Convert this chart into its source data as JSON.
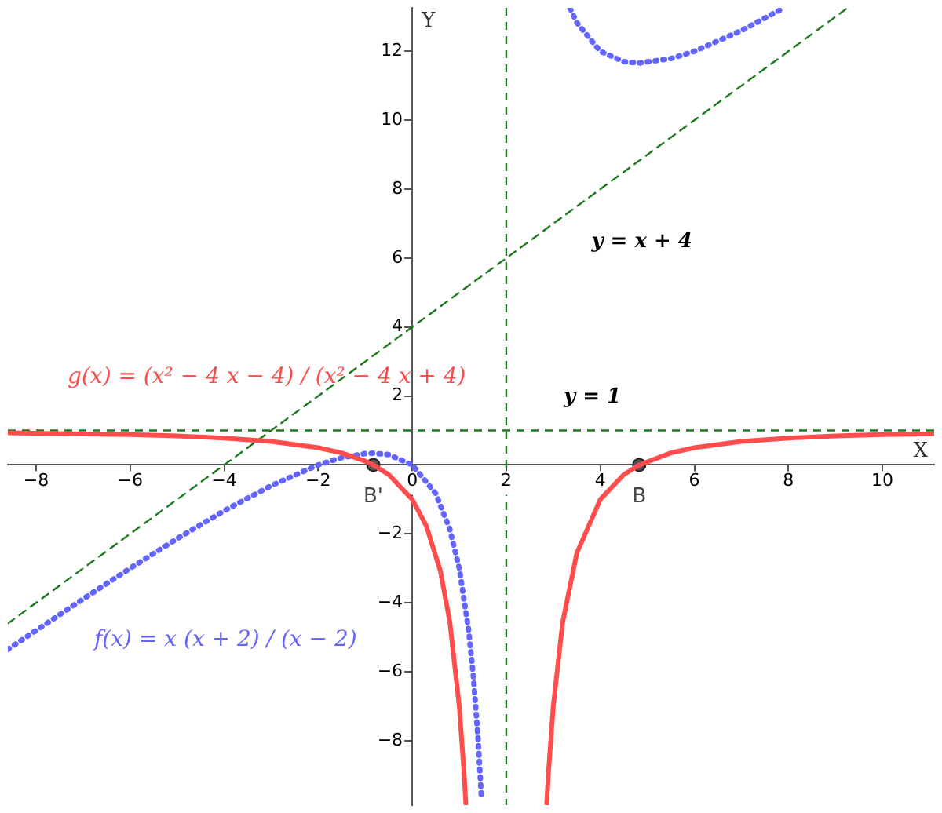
{
  "chart_data": {
    "type": "line",
    "xlabel": "X",
    "ylabel": "Y",
    "xlim": [
      -8.6,
      11.1
    ],
    "ylim": [
      -9.87,
      13.26
    ],
    "xticks": [
      -8,
      -6,
      -4,
      -2,
      0,
      2,
      4,
      6,
      8,
      10
    ],
    "yticks": [
      -8,
      -6,
      -4,
      -2,
      2,
      4,
      6,
      8,
      10,
      12
    ],
    "grid": false,
    "legend": false,
    "series": [
      {
        "name": "g(x) = (x² − 4 x − 4) / (x² − 4 x + 4)",
        "color": "#ff4d4d",
        "line_style": "solid",
        "x": [
          -8.6,
          -7,
          -6,
          -5,
          -4,
          -3,
          -2,
          -1.5,
          -1,
          -0.828,
          -0.5,
          0,
          0.3,
          0.6,
          0.8,
          1,
          1.1,
          1.14,
          null,
          2.86,
          2.9,
          3,
          3.2,
          3.5,
          4,
          4.5,
          4.828,
          5.5,
          6,
          7,
          8,
          9,
          10,
          11.1
        ],
        "values": [
          0.93,
          0.9,
          0.88,
          0.84,
          0.78,
          0.68,
          0.5,
          0.35,
          0.11,
          0,
          -0.28,
          -1,
          -1.77,
          -3.08,
          -4.56,
          -7,
          -8.88,
          -9.82,
          null,
          -9.82,
          -8.88,
          -7,
          -4.56,
          -2.56,
          -1,
          -0.28,
          0,
          0.35,
          0.5,
          0.68,
          0.78,
          0.84,
          0.88,
          0.9
        ]
      },
      {
        "name": "f(x) = x (x + 2) / (x − 2)",
        "color": "#6464ff",
        "line_style": "dotted",
        "x": [
          -8.6,
          -7,
          -6,
          -5,
          -4,
          -3,
          -2,
          -1.5,
          -1,
          -0.828,
          -0.5,
          0,
          0.5,
          0.8,
          1,
          1.2,
          1.3,
          1.4,
          1.47,
          null,
          3.36,
          3.5,
          4,
          4.5,
          4.83,
          5.5,
          6,
          7,
          7.88
        ],
        "values": [
          -5.35,
          -3.89,
          -3,
          -2.14,
          -1.33,
          -0.6,
          0,
          0.21,
          0.33,
          0.34,
          0.3,
          0,
          -0.83,
          -1.87,
          -3,
          -4.8,
          -6.13,
          -7.93,
          -9.62,
          null,
          13.24,
          12.83,
          12,
          11.7,
          11.66,
          11.79,
          12,
          12.6,
          13.24
        ]
      },
      {
        "color": "#1e7a1e",
        "line_style": "dashed",
        "x": [
          -8.6,
          9.26
        ],
        "values": [
          -4.6,
          13.26
        ]
      },
      {
        "name": "B'",
        "type": "scatter",
        "marker": "circle",
        "color": "#555555",
        "x": [
          -0.828
        ],
        "values": [
          0
        ]
      },
      {
        "name": "B",
        "type": "scatter",
        "marker": "circle",
        "color": "#555555",
        "x": [
          4.828
        ],
        "values": [
          0
        ]
      }
    ],
    "annotations": [
      "y = x + 4"
    ],
    "ref_lines": [
      {
        "axis": "y",
        "value": 1,
        "label": "y = 1",
        "color": "#1e7a1e",
        "line_style": "dashed"
      },
      {
        "axis": "x",
        "value": 2,
        "color": "#1e7a1e",
        "line_style": "dashed"
      }
    ]
  }
}
